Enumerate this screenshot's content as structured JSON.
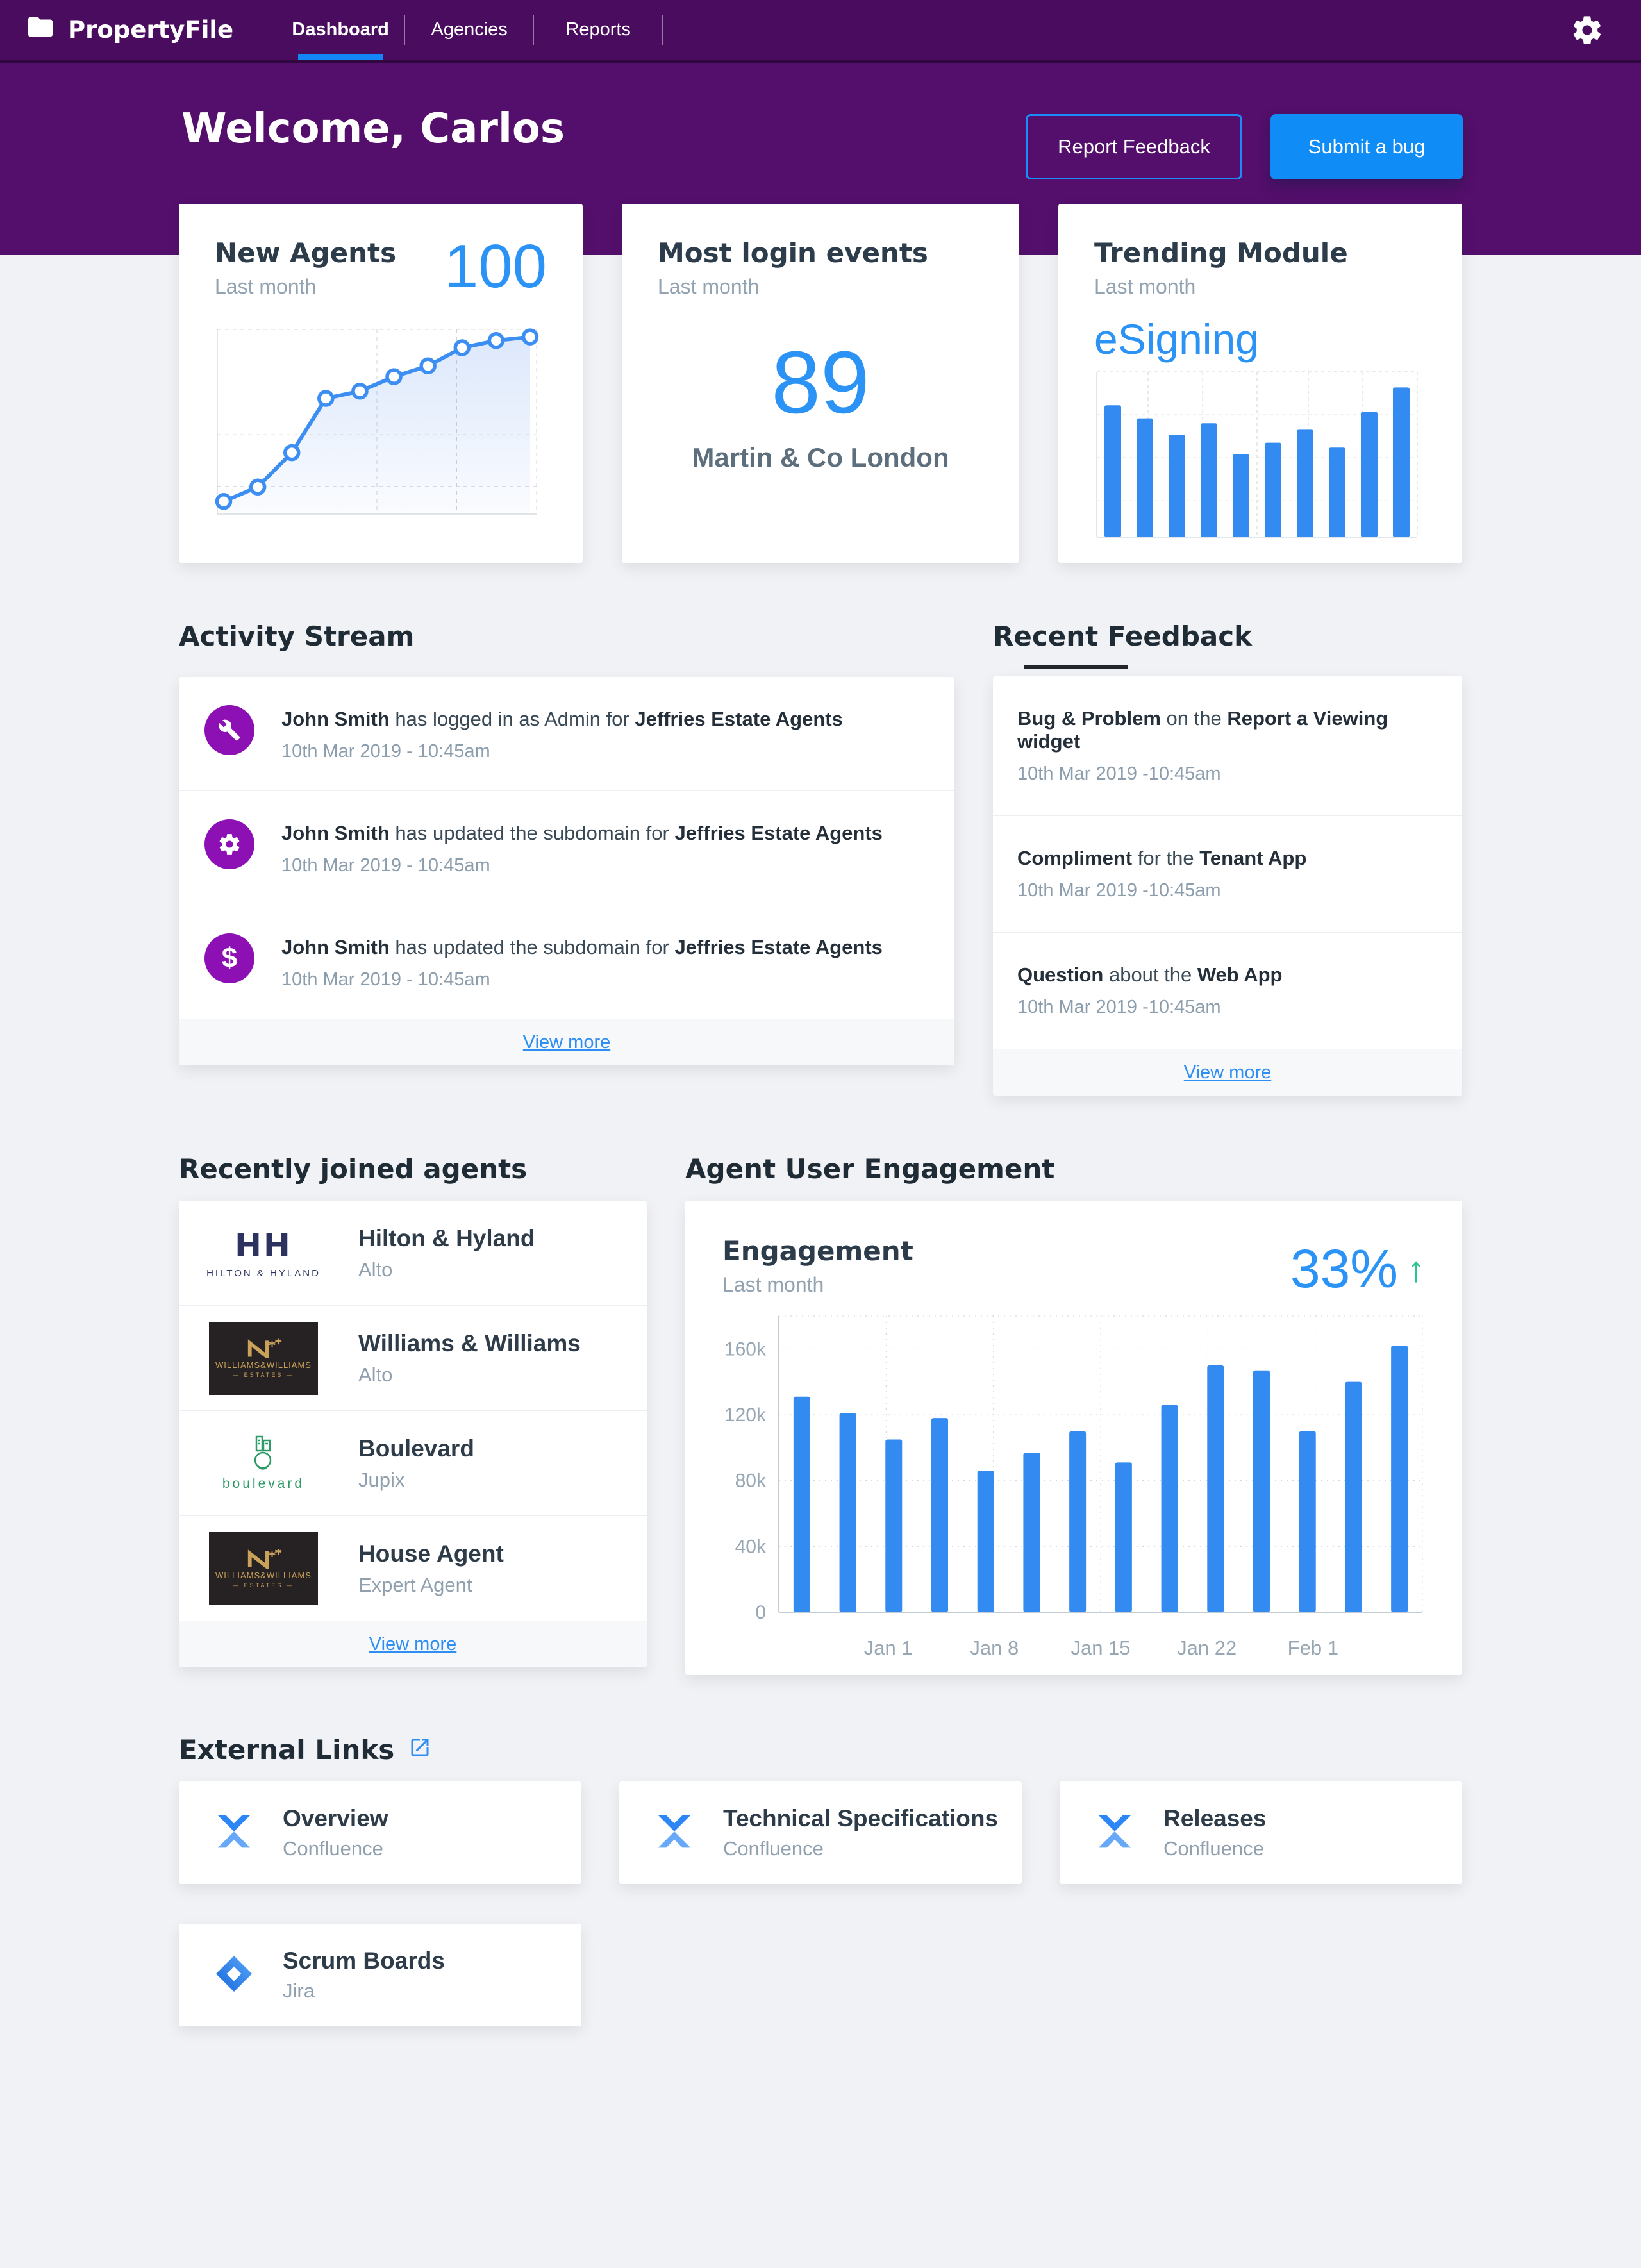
{
  "nav": {
    "brand": "PropertyFile",
    "tabs": [
      {
        "label": "Dashboard",
        "active": true
      },
      {
        "label": "Agencies",
        "active": false
      },
      {
        "label": "Reports",
        "active": false
      }
    ],
    "settings_icon": "gear-icon",
    "brand_icon": "folder-icon"
  },
  "hero": {
    "title": "Welcome, Carlos",
    "buttons": [
      {
        "label": "Report Feedback",
        "style": "outline"
      },
      {
        "label": "Submit a bug",
        "style": "solid"
      }
    ]
  },
  "stats": {
    "new_agents": {
      "title": "New Agents",
      "subtitle": "Last month",
      "value": "100"
    },
    "logins": {
      "title": "Most login events",
      "subtitle": "Last month",
      "value": "89",
      "caption": "Martin & Co London"
    },
    "trending": {
      "title": "Trending Module",
      "subtitle": "Last month",
      "value": "eSigning"
    }
  },
  "activity": {
    "heading": "Activity Stream",
    "view_more": "View more",
    "items": [
      {
        "icon": "wrench-icon",
        "parts": [
          {
            "text": "John Smith",
            "bold": true
          },
          {
            "text": " has logged in as Admin for "
          },
          {
            "text": "Jeffries Estate Agents",
            "bold": true
          }
        ],
        "date": "10th Mar 2019 - 10:45am"
      },
      {
        "icon": "gear-icon",
        "parts": [
          {
            "text": "John Smith",
            "bold": true
          },
          {
            "text": " has updated the subdomain for "
          },
          {
            "text": "Jeffries Estate Agents",
            "bold": true
          }
        ],
        "date": "10th Mar 2019 - 10:45am"
      },
      {
        "icon": "dollar-icon",
        "parts": [
          {
            "text": "John Smith",
            "bold": true
          },
          {
            "text": " has updated the subdomain for "
          },
          {
            "text": "Jeffries Estate Agents",
            "bold": true
          }
        ],
        "date": "10th Mar 2019 - 10:45am"
      }
    ]
  },
  "feedback": {
    "heading": "Recent Feedback",
    "view_more": "View more",
    "items": [
      {
        "parts": [
          {
            "text": "Bug & Problem",
            "bold": true
          },
          {
            "text": " on the "
          },
          {
            "text": "Report a Viewing widget",
            "bold": true
          }
        ],
        "date": "10th Mar 2019 -10:45am"
      },
      {
        "parts": [
          {
            "text": "Compliment",
            "bold": true
          },
          {
            "text": " for the "
          },
          {
            "text": "Tenant App",
            "bold": true
          }
        ],
        "date": "10th Mar 2019 -10:45am"
      },
      {
        "parts": [
          {
            "text": "Question",
            "bold": true
          },
          {
            "text": " about the "
          },
          {
            "text": "Web App",
            "bold": true
          }
        ],
        "date": "10th Mar 2019 -10:45am"
      }
    ]
  },
  "agents": {
    "heading": "Recently joined agents",
    "view_more": "View more",
    "items": [
      {
        "name": "Hilton & Hyland",
        "platform": "Alto",
        "logo": "hilton",
        "logo_monogram": "HH",
        "logo_text": "HILTON & HYLAND"
      },
      {
        "name": "Williams & Williams",
        "platform": "Alto",
        "logo": "williams",
        "logo_text": "WILLIAMS&WILLIAMS",
        "logo_subtext": "ESTATES"
      },
      {
        "name": "Boulevard",
        "platform": "Jupix",
        "logo": "boulevard",
        "logo_text": "boulevard"
      },
      {
        "name": "House Agent",
        "platform": "Expert Agent",
        "logo": "williams",
        "logo_text": "WILLIAMS&WILLIAMS",
        "logo_subtext": "ESTATES"
      }
    ]
  },
  "engagement": {
    "section_heading": "Agent User Engagement",
    "title": "Engagement",
    "subtitle": "Last month",
    "delta": "33%",
    "delta_direction": "up",
    "delta_arrow": "↑"
  },
  "external_links": {
    "heading": "External Links",
    "items": [
      {
        "name": "Overview",
        "source": "Confluence",
        "logo": "confluence"
      },
      {
        "name": "Technical Specifications",
        "source": "Confluence",
        "logo": "confluence"
      },
      {
        "name": "Releases",
        "source": "Confluence",
        "logo": "confluence"
      },
      {
        "name": "Scrum Boards",
        "source": "Jira",
        "logo": "jira"
      }
    ]
  },
  "colors": {
    "nav_purple": "#4a0c5f",
    "hero_purple": "#530f6b",
    "accent_blue": "#2a93f5",
    "bar_blue": "#338af0",
    "link_blue": "#2f8ef3",
    "icon_purple": "#8d10b5",
    "delta_green": "#2bc48e",
    "text_dark": "#2d3c4a",
    "text_gray": "#93a3b1",
    "page_bg": "#f1f2f5"
  },
  "chart_data": [
    {
      "id": "new-agents-trend",
      "type": "line",
      "title": "New Agents",
      "subtitle": "Last month",
      "headline_value": 100,
      "x": [
        1,
        2,
        3,
        4,
        5,
        6,
        7,
        8,
        9,
        10
      ],
      "values": [
        7,
        15,
        34,
        64,
        68,
        76,
        82,
        92,
        96,
        98
      ],
      "units": "relative",
      "ylim": [
        0,
        100
      ],
      "grid": "dashed",
      "markers": true,
      "area": true,
      "axis_tick_labels_visible": false
    },
    {
      "id": "trending-module",
      "type": "bar",
      "title": "Trending Module",
      "subtitle": "Last month",
      "headline_value": "eSigning",
      "values": [
        81,
        73,
        63,
        70,
        51,
        58,
        66,
        55,
        77,
        92
      ],
      "units": "relative",
      "ylim": [
        0,
        100
      ],
      "grid": "dashed",
      "axis_tick_labels_visible": false
    },
    {
      "id": "engagement",
      "type": "bar",
      "title": "Engagement",
      "subtitle": "Last month",
      "delta": "33%",
      "values_k": [
        131,
        121,
        105,
        118,
        86,
        97,
        110,
        91,
        126,
        150,
        147,
        110,
        140,
        162
      ],
      "ylim_k": [
        0,
        180
      ],
      "yticks": [
        {
          "label": "160k",
          "v": 160
        },
        {
          "label": "120k",
          "v": 120
        },
        {
          "label": "80k",
          "v": 80
        },
        {
          "label": "40k",
          "v": 40
        },
        {
          "label": "0",
          "v": 0
        }
      ],
      "xticks": [
        {
          "label": "Jan 1",
          "f": 0.17
        },
        {
          "label": "Jan 8",
          "f": 0.335
        },
        {
          "label": "Jan 15",
          "f": 0.5
        },
        {
          "label": "Jan 22",
          "f": 0.665
        },
        {
          "label": "Feb 1",
          "f": 0.83
        }
      ],
      "grid": "dotted",
      "legend": false
    }
  ]
}
